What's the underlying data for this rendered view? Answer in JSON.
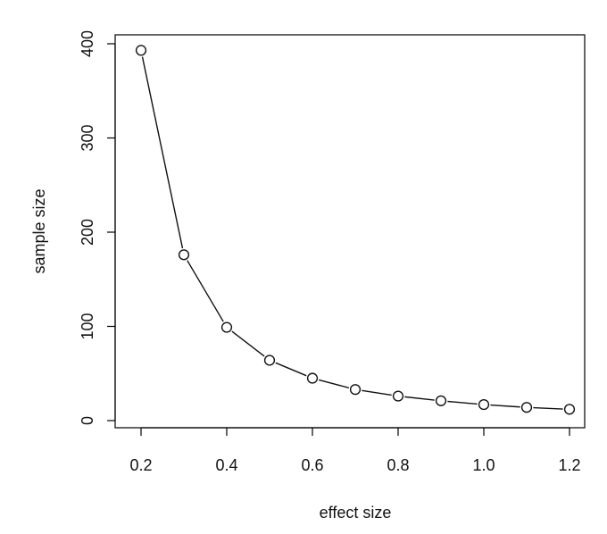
{
  "chart_data": {
    "type": "line",
    "xlabel": "effect size",
    "ylabel": "sample size",
    "xlim": [
      0.2,
      1.2
    ],
    "ylim": [
      0,
      400
    ],
    "x_ticks": [
      "0.2",
      "0.4",
      "0.6",
      "0.8",
      "1.0",
      "1.2"
    ],
    "y_ticks": [
      "0",
      "100",
      "200",
      "300",
      "400"
    ],
    "series": [
      {
        "x": [
          0.2,
          0.3,
          0.4,
          0.5,
          0.6,
          0.7,
          0.8,
          0.9,
          1.0,
          1.1,
          1.2
        ],
        "y": [
          393,
          176,
          99,
          64,
          45,
          33,
          26,
          21,
          17,
          14,
          12
        ]
      }
    ],
    "grid": false,
    "marker": "open-circle"
  }
}
